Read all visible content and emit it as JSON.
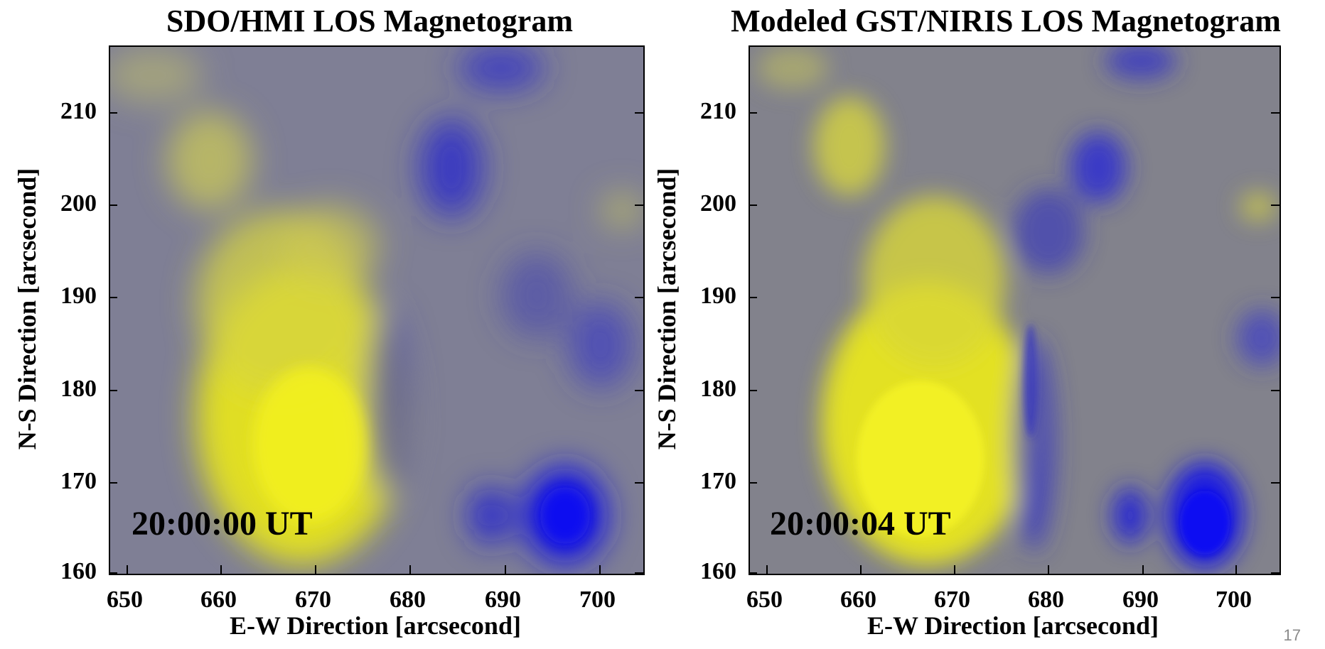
{
  "panels": [
    {
      "id": "hmi",
      "title": "SDO/HMI LOS Magnetogram",
      "timestamp": "20:00:00 UT",
      "xlabel": "E-W Direction [arcsecond]",
      "ylabel": "N-S Direction [arcsecond]"
    },
    {
      "id": "niris",
      "title": "Modeled GST/NIRIS LOS Magnetogram",
      "timestamp": "20:00:04 UT",
      "xlabel": "E-W Direction [arcsecond]",
      "ylabel": "N-S Direction [arcsecond]"
    }
  ],
  "x_ticks": [
    "650",
    "660",
    "670",
    "680",
    "690",
    "700"
  ],
  "y_ticks": [
    "210",
    "200",
    "190",
    "180",
    "170",
    "160"
  ],
  "page_number": "17",
  "colors": {
    "positive_polarity": "#e8e61e",
    "negative_polarity": "#1e1ee6",
    "background_field": "#808090"
  }
}
